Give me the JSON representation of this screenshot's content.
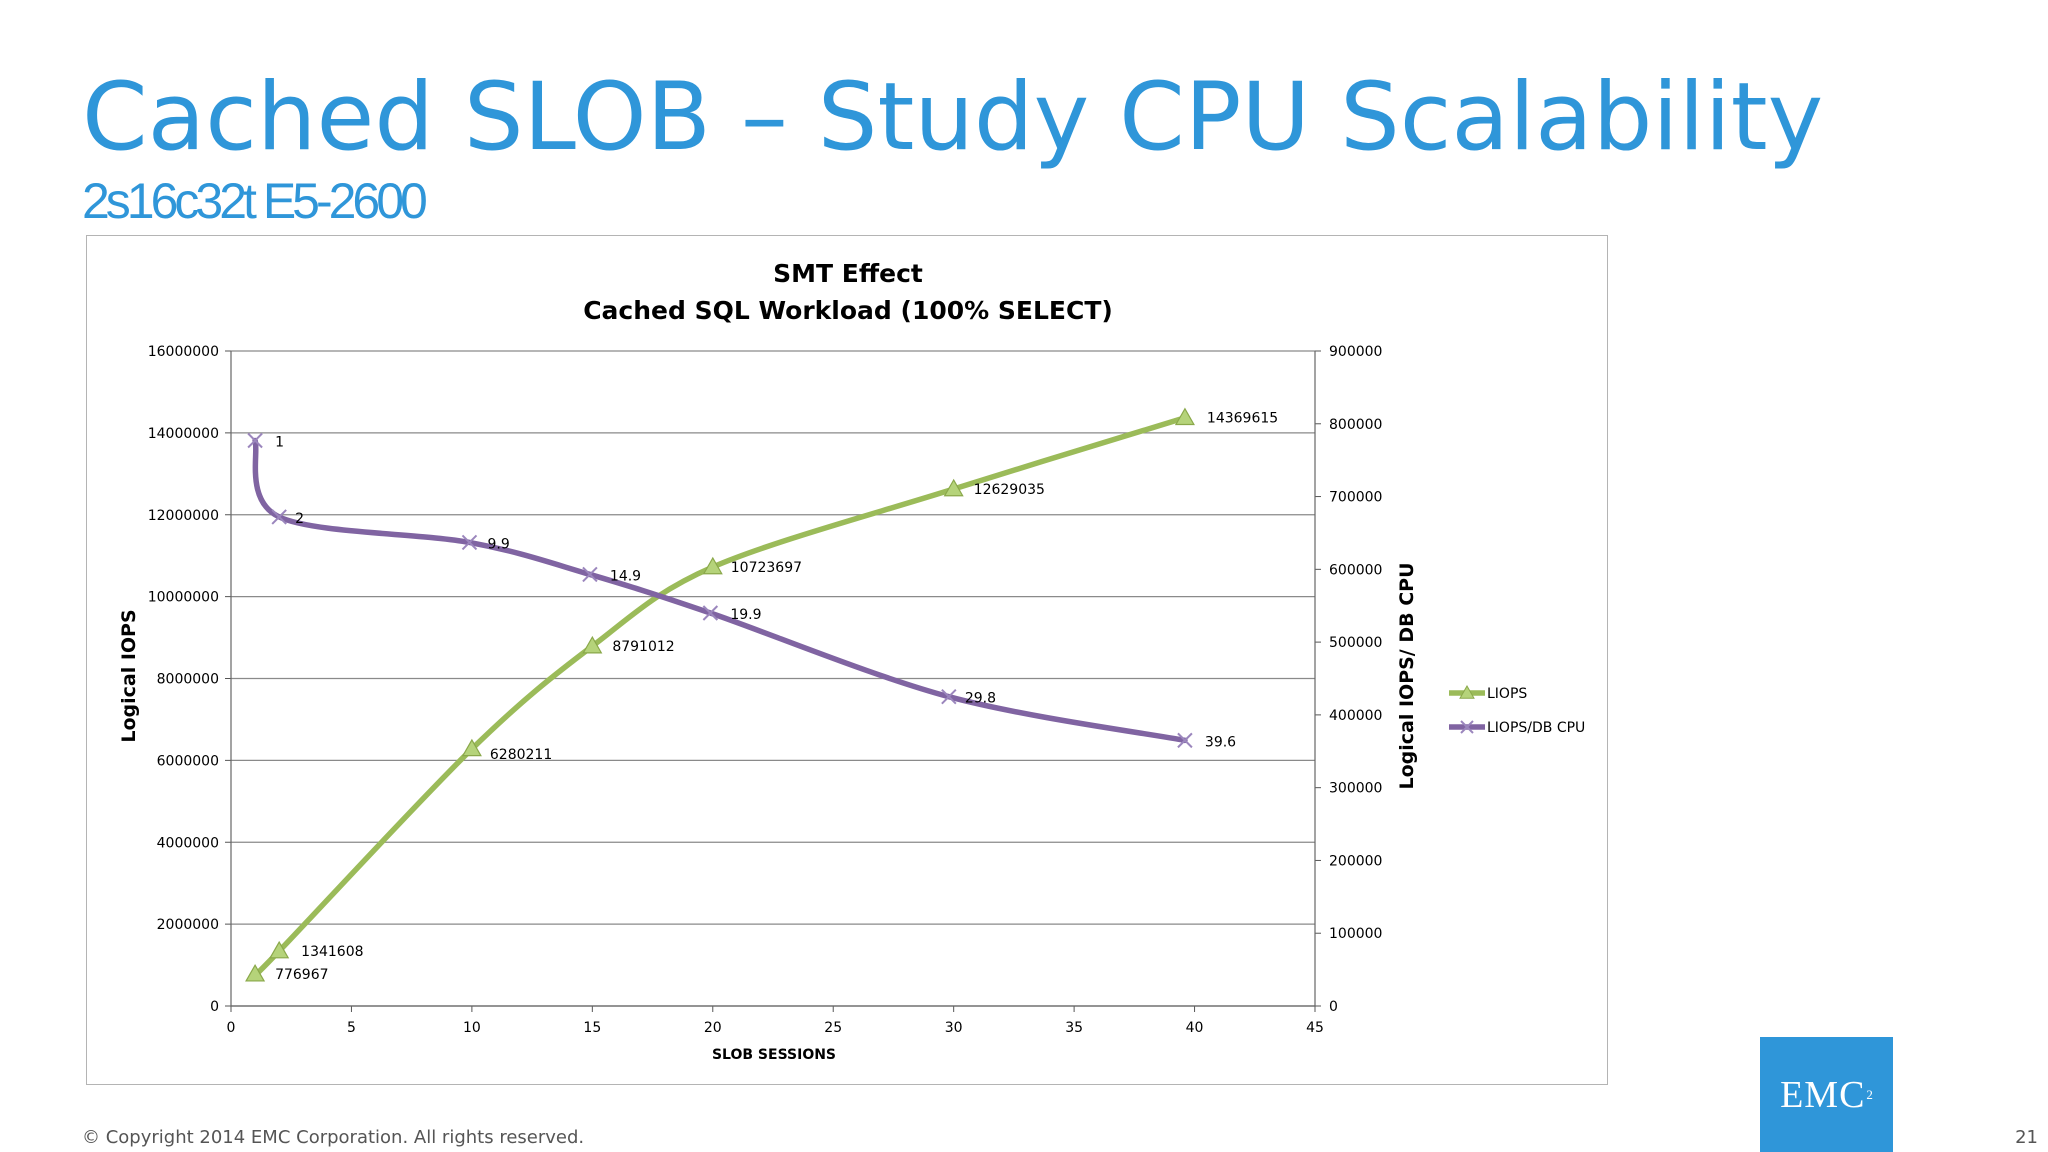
{
  "slide": {
    "title": "Cached SLOB – Study CPU Scalability",
    "subtitle": "2s16c32t E5-2600",
    "copyright": "© Copyright 2014 EMC Corporation. All rights reserved.",
    "page_number": "21",
    "logo_text": "EMC",
    "logo_superscript": "2",
    "accent_color": "#2f96d9"
  },
  "chart_data": {
    "type": "line",
    "title": "SMT Effect",
    "subtitle": "Cached SQL Workload (100% SELECT)",
    "xlabel": "SLOB SESSIONS",
    "ylabel": "Logical IOPS",
    "y2label": "Logical IOPS/ DB CPU",
    "xlim": [
      0,
      45
    ],
    "ylim": [
      0,
      16000000
    ],
    "y2lim": [
      0,
      900000
    ],
    "x_ticks": [
      "0",
      "5",
      "10",
      "15",
      "20",
      "25",
      "30",
      "35",
      "40",
      "45"
    ],
    "y_ticks": [
      "0",
      "2000000",
      "4000000",
      "6000000",
      "8000000",
      "10000000",
      "12000000",
      "14000000",
      "16000000"
    ],
    "y2_ticks": [
      "0",
      "100000",
      "200000",
      "300000",
      "400000",
      "500000",
      "600000",
      "700000",
      "800000",
      "900000"
    ],
    "grid": true,
    "legend_position": "right",
    "series": [
      {
        "name": "LIOPS",
        "axis": "left",
        "color": "#9bbb59",
        "marker": "triangle",
        "x": [
          1,
          2,
          10,
          15,
          20,
          30,
          39.6
        ],
        "values": [
          776967,
          1341608,
          6280211,
          8791012,
          10723697,
          12629035,
          14369615
        ],
        "labels": [
          "776967",
          "1341608",
          "6280211",
          "8791012",
          "10723697",
          "12629035",
          "14369615"
        ]
      },
      {
        "name": "LIOPS/DB CPU",
        "axis": "right",
        "color": "#8064a2",
        "marker": "x",
        "x": [
          1,
          2,
          9.9,
          14.9,
          19.9,
          29.8,
          39.6
        ],
        "values": [
          777000,
          672000,
          637000,
          593000,
          540000,
          425000,
          365000
        ],
        "labels": [
          "1",
          "2",
          "9.9",
          "14.9",
          "19.9",
          "29.8",
          "39.6"
        ]
      }
    ]
  }
}
